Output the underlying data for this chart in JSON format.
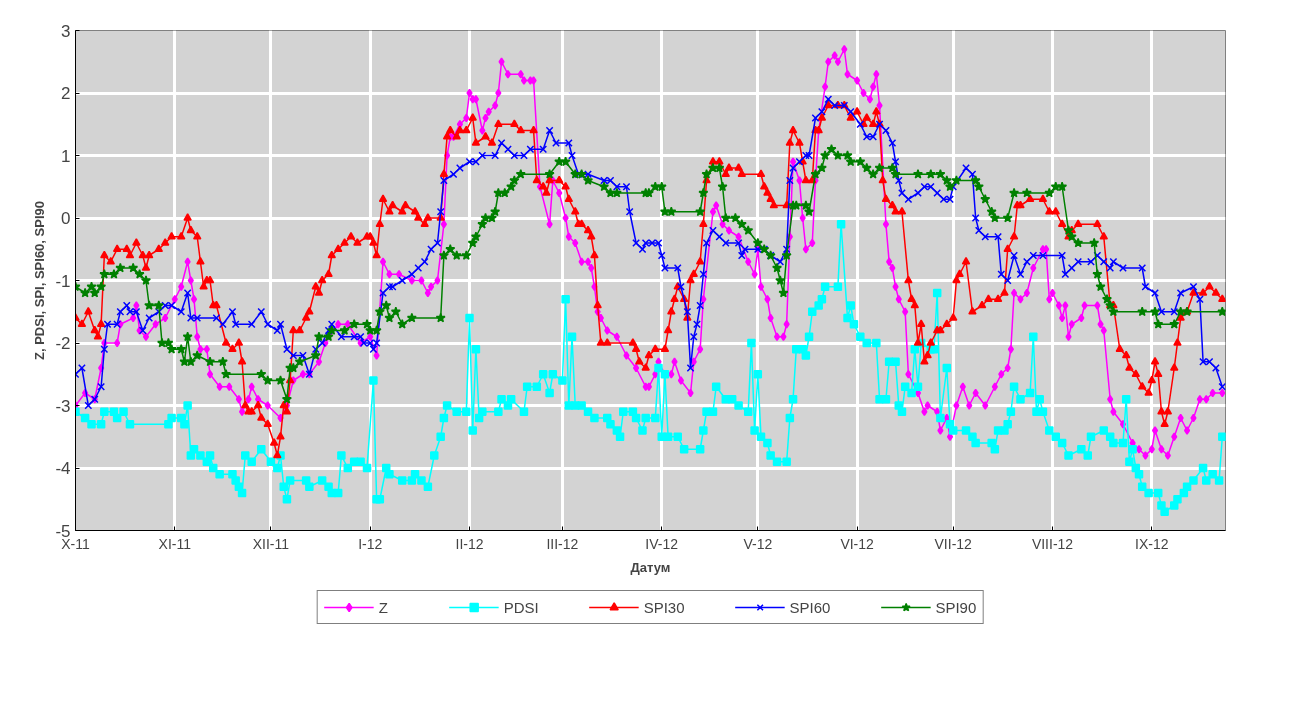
{
  "chart_data": {
    "type": "line",
    "xlabel": "Датум",
    "ylabel": "Z, PDSI, SPI, SPI60, SPI90",
    "xlim": [
      "2011-10-01",
      "2012-09-24"
    ],
    "ylim": [
      -5,
      3
    ],
    "yticks": [
      -5,
      -4,
      -3,
      -2,
      -1,
      0,
      1,
      2,
      3
    ],
    "xticks": [
      {
        "value": "2011-10-01",
        "label": "X-11"
      },
      {
        "value": "2011-11-01",
        "label": "XI-11"
      },
      {
        "value": "2011-12-01",
        "label": "XII-11"
      },
      {
        "value": "2012-01-01",
        "label": "I-12"
      },
      {
        "value": "2012-02-01",
        "label": "II-12"
      },
      {
        "value": "2012-03-01",
        "label": "III-12"
      },
      {
        "value": "2012-04-01",
        "label": "IV-12"
      },
      {
        "value": "2012-05-01",
        "label": "V-12"
      },
      {
        "value": "2012-06-01",
        "label": "VI-12"
      },
      {
        "value": "2012-07-01",
        "label": "VII-12"
      },
      {
        "value": "2012-08-01",
        "label": "VIII-12"
      },
      {
        "value": "2012-09-01",
        "label": "IX-12"
      }
    ],
    "grid": true,
    "legend": "bottom",
    "line_style": "solid",
    "series": [
      {
        "name": "Z",
        "color": "#ff00ff",
        "marker": "diamond",
        "x": [
          "2011-10-01",
          "2011-10-04",
          "2011-10-07",
          "2011-10-09",
          "2011-10-10",
          "2011-10-14",
          "2011-10-15",
          "2011-10-19",
          "2011-10-20",
          "2011-10-21",
          "2011-10-23",
          "2011-10-26",
          "2011-10-29",
          "2011-11-01",
          "2011-11-03",
          "2011-11-05",
          "2011-11-06",
          "2011-11-07",
          "2011-11-08",
          "2011-11-09",
          "2011-11-11",
          "2011-11-12",
          "2011-11-15",
          "2011-11-18",
          "2011-11-21",
          "2011-11-22",
          "2011-11-24",
          "2011-11-25",
          "2011-11-27",
          "2011-11-30",
          "2011-12-04",
          "2011-12-06",
          "2011-12-08",
          "2011-12-11",
          "2011-12-13",
          "2011-12-16",
          "2011-12-18",
          "2011-12-22",
          "2011-12-25",
          "2011-12-29",
          "2012-01-01",
          "2012-01-03",
          "2012-01-05",
          "2012-01-07",
          "2012-01-10",
          "2012-01-14",
          "2012-01-17",
          "2012-01-19",
          "2012-01-20",
          "2012-01-22",
          "2012-01-24",
          "2012-01-25",
          "2012-01-26",
          "2012-01-27",
          "2012-01-29",
          "2012-01-31",
          "2012-02-01",
          "2012-02-02",
          "2012-02-03",
          "2012-02-05",
          "2012-02-06",
          "2012-02-07",
          "2012-02-09",
          "2012-02-10",
          "2012-02-11",
          "2012-02-13",
          "2012-02-17",
          "2012-02-18",
          "2012-02-20",
          "2012-02-21",
          "2012-02-23",
          "2012-02-26",
          "2012-02-27",
          "2012-02-29",
          "2012-03-02",
          "2012-03-03",
          "2012-03-05",
          "2012-03-07",
          "2012-03-09",
          "2012-03-10",
          "2012-03-11",
          "2012-03-12",
          "2012-03-13",
          "2012-03-15",
          "2012-03-18",
          "2012-03-21",
          "2012-03-24",
          "2012-03-27",
          "2012-03-28",
          "2012-03-30",
          "2012-03-31",
          "2012-04-02",
          "2012-04-04",
          "2012-04-05",
          "2012-04-07",
          "2012-04-10",
          "2012-04-11",
          "2012-04-13",
          "2012-04-14",
          "2012-04-17",
          "2012-04-18",
          "2012-04-20",
          "2012-04-22",
          "2012-04-25",
          "2012-04-28",
          "2012-04-30",
          "2012-05-01",
          "2012-05-02",
          "2012-05-04",
          "2012-05-05",
          "2012-05-07",
          "2012-05-09",
          "2012-05-10",
          "2012-05-11",
          "2012-05-12",
          "2012-05-14",
          "2012-05-15",
          "2012-05-16",
          "2012-05-18",
          "2012-05-19",
          "2012-05-20",
          "2012-05-22",
          "2012-05-23",
          "2012-05-25",
          "2012-05-26",
          "2012-05-28",
          "2012-05-29",
          "2012-06-01",
          "2012-06-03",
          "2012-06-05",
          "2012-06-06",
          "2012-06-07",
          "2012-06-08",
          "2012-06-10",
          "2012-06-11",
          "2012-06-12",
          "2012-06-13",
          "2012-06-14",
          "2012-06-16",
          "2012-06-17",
          "2012-06-20",
          "2012-06-22",
          "2012-06-23",
          "2012-06-26",
          "2012-06-27",
          "2012-06-29",
          "2012-06-30",
          "2012-07-02",
          "2012-07-04",
          "2012-07-06",
          "2012-07-08",
          "2012-07-11",
          "2012-07-14",
          "2012-07-16",
          "2012-07-18",
          "2012-07-19",
          "2012-07-20",
          "2012-07-22",
          "2012-07-24",
          "2012-07-26",
          "2012-07-29",
          "2012-07-30",
          "2012-07-31",
          "2012-08-01",
          "2012-08-03",
          "2012-08-04",
          "2012-08-05",
          "2012-08-06",
          "2012-08-07",
          "2012-08-10",
          "2012-08-11",
          "2012-08-15",
          "2012-08-16",
          "2012-08-17",
          "2012-08-19",
          "2012-08-20",
          "2012-08-23",
          "2012-08-26",
          "2012-08-28",
          "2012-08-30",
          "2012-09-01",
          "2012-09-02",
          "2012-09-04",
          "2012-09-06",
          "2012-09-08",
          "2012-09-10",
          "2012-09-12",
          "2012-09-14",
          "2012-09-16",
          "2012-09-18",
          "2012-09-20",
          "2012-09-23"
        ],
        "values": [
          -3.0,
          -2.8,
          -2.9,
          -2.4,
          -2.0,
          -2.0,
          -1.7,
          -1.6,
          -1.4,
          -1.8,
          -1.9,
          -1.7,
          -1.6,
          -1.3,
          -1.1,
          -0.7,
          -1.0,
          -1.3,
          -1.9,
          -2.1,
          -2.1,
          -2.5,
          -2.7,
          -2.7,
          -2.9,
          -3.1,
          -2.9,
          -2.7,
          -2.9,
          -3.0,
          -3.2,
          -3.0,
          -2.6,
          -2.5,
          -2.5,
          -2.3,
          -2.0,
          -1.7,
          -1.7,
          -2.0,
          -1.9,
          -2.2,
          -0.7,
          -0.9,
          -0.9,
          -1.0,
          -1.0,
          -1.2,
          -1.1,
          -1.0,
          -0.1,
          1.0,
          1.3,
          1.3,
          1.5,
          1.6,
          2.0,
          1.9,
          1.9,
          1.4,
          1.6,
          1.7,
          1.8,
          2.0,
          2.5,
          2.3,
          2.3,
          2.2,
          2.2,
          2.2,
          0.5,
          -0.1,
          0.6,
          0.4,
          0.0,
          -0.3,
          -0.4,
          -0.7,
          -0.7,
          -0.8,
          -1.1,
          -1.5,
          -1.6,
          -1.8,
          -1.9,
          -2.2,
          -2.4,
          -2.7,
          -2.7,
          -2.5,
          -2.3,
          -2.5,
          -2.5,
          -2.3,
          -2.6,
          -2.8,
          -2.3,
          -2.1,
          -1.3,
          0.1,
          0.2,
          -0.1,
          -0.2,
          -0.3,
          -0.7,
          -0.9,
          -0.5,
          -1.1,
          -1.3,
          -1.6,
          -1.9,
          -1.9,
          -1.7,
          -0.3,
          0.9,
          0.6,
          0.0,
          -0.5,
          -0.4,
          0.6,
          1.4,
          2.1,
          2.5,
          2.6,
          2.5,
          2.7,
          2.3,
          2.2,
          2.0,
          1.9,
          2.1,
          2.3,
          1.8,
          -0.1,
          -0.7,
          -0.8,
          -1.1,
          -1.3,
          -1.5,
          -2.5,
          -2.8,
          -3.1,
          -3.0,
          -3.1,
          -3.4,
          -3.2,
          -3.5,
          -3.0,
          -2.7,
          -3.0,
          -2.8,
          -3.0,
          -2.7,
          -2.5,
          -2.4,
          -2.1,
          -1.2,
          -1.3,
          -1.2,
          -0.8,
          -0.5,
          -0.5,
          -1.3,
          -1.2,
          -1.4,
          -1.6,
          -1.4,
          -1.9,
          -1.7,
          -1.6,
          -1.4,
          -1.4,
          -1.7,
          -1.8,
          -2.9,
          -3.1,
          -3.3,
          -3.6,
          -3.7,
          -3.8,
          -3.7,
          -3.4,
          -3.7,
          -3.8,
          -3.5,
          -3.2,
          -3.4,
          -3.2,
          -2.9,
          -2.9,
          -2.8,
          -2.8
        ]
      },
      {
        "name": "PDSI",
        "color": "#00ffff",
        "marker": "square",
        "x": [
          "2011-10-01",
          "2011-10-04",
          "2011-10-06",
          "2011-10-09",
          "2011-10-10",
          "2011-10-13",
          "2011-10-14",
          "2011-10-16",
          "2011-10-18",
          "2011-10-30",
          "2011-10-31",
          "2011-11-03",
          "2011-11-04",
          "2011-11-05",
          "2011-11-06",
          "2011-11-07",
          "2011-11-09",
          "2011-11-11",
          "2011-11-12",
          "2011-11-13",
          "2011-11-15",
          "2011-11-19",
          "2011-11-20",
          "2011-11-21",
          "2011-11-22",
          "2011-11-23",
          "2011-11-25",
          "2011-11-28",
          "2011-12-01",
          "2011-12-03",
          "2011-12-04",
          "2011-12-05",
          "2011-12-06",
          "2011-12-07",
          "2011-12-12",
          "2011-12-13",
          "2011-12-17",
          "2011-12-19",
          "2011-12-20",
          "2011-12-22",
          "2011-12-23",
          "2011-12-25",
          "2011-12-27",
          "2011-12-29",
          "2011-12-31",
          "2012-01-02",
          "2012-01-03",
          "2012-01-04",
          "2012-01-06",
          "2012-01-07",
          "2012-01-11",
          "2012-01-14",
          "2012-01-15",
          "2012-01-17",
          "2012-01-19",
          "2012-01-21",
          "2012-01-23",
          "2012-01-24",
          "2012-01-25",
          "2012-01-28",
          "2012-01-31",
          "2012-02-01",
          "2012-02-02",
          "2012-02-03",
          "2012-02-04",
          "2012-02-05",
          "2012-02-10",
          "2012-02-11",
          "2012-02-13",
          "2012-02-14",
          "2012-02-18",
          "2012-02-19",
          "2012-02-22",
          "2012-02-24",
          "2012-02-26",
          "2012-02-27",
          "2012-03-01",
          "2012-03-02",
          "2012-03-03",
          "2012-03-04",
          "2012-03-05",
          "2012-03-07",
          "2012-03-09",
          "2012-03-11",
          "2012-03-15",
          "2012-03-16",
          "2012-03-18",
          "2012-03-19",
          "2012-03-20",
          "2012-03-23",
          "2012-03-24",
          "2012-03-26",
          "2012-03-27",
          "2012-03-30",
          "2012-03-31",
          "2012-04-01",
          "2012-04-02",
          "2012-04-03",
          "2012-04-06",
          "2012-04-08",
          "2012-04-13",
          "2012-04-14",
          "2012-04-15",
          "2012-04-17",
          "2012-04-18",
          "2012-04-21",
          "2012-04-23",
          "2012-04-25",
          "2012-04-28",
          "2012-04-29",
          "2012-04-30",
          "2012-05-01",
          "2012-05-02",
          "2012-05-04",
          "2012-05-05",
          "2012-05-07",
          "2012-05-10",
          "2012-05-11",
          "2012-05-12",
          "2012-05-13",
          "2012-05-15",
          "2012-05-16",
          "2012-05-17",
          "2012-05-18",
          "2012-05-20",
          "2012-05-21",
          "2012-05-22",
          "2012-05-26",
          "2012-05-27",
          "2012-05-29",
          "2012-05-30",
          "2012-05-31",
          "2012-06-02",
          "2012-06-04",
          "2012-06-07",
          "2012-06-08",
          "2012-06-10",
          "2012-06-11",
          "2012-06-13",
          "2012-06-14",
          "2012-06-15",
          "2012-06-16",
          "2012-06-18",
          "2012-06-19",
          "2012-06-20",
          "2012-06-21",
          "2012-06-24",
          "2012-06-25",
          "2012-06-26",
          "2012-06-27",
          "2012-06-29",
          "2012-06-30",
          "2012-07-01",
          "2012-07-05",
          "2012-07-07",
          "2012-07-08",
          "2012-07-13",
          "2012-07-14",
          "2012-07-15",
          "2012-07-17",
          "2012-07-18",
          "2012-07-19",
          "2012-07-20",
          "2012-07-22",
          "2012-07-25",
          "2012-07-26",
          "2012-07-27",
          "2012-07-28",
          "2012-07-29",
          "2012-07-31",
          "2012-08-02",
          "2012-08-04",
          "2012-08-06",
          "2012-08-10",
          "2012-08-12",
          "2012-08-13",
          "2012-08-17",
          "2012-08-19",
          "2012-08-20",
          "2012-08-23",
          "2012-08-24",
          "2012-08-25",
          "2012-08-26",
          "2012-08-27",
          "2012-08-28",
          "2012-08-29",
          "2012-08-31",
          "2012-09-03",
          "2012-09-04",
          "2012-09-05",
          "2012-09-08",
          "2012-09-09",
          "2012-09-11",
          "2012-09-12",
          "2012-09-14",
          "2012-09-17",
          "2012-09-18",
          "2012-09-20",
          "2012-09-22",
          "2012-09-23"
        ],
        "values": [
          -3.1,
          -3.2,
          -3.3,
          -3.3,
          -3.1,
          -3.1,
          -3.2,
          -3.1,
          -3.3,
          -3.3,
          -3.2,
          -3.2,
          -3.3,
          -3.0,
          -3.8,
          -3.7,
          -3.8,
          -3.9,
          -3.8,
          -4.0,
          -4.1,
          -4.1,
          -4.2,
          -4.3,
          -4.4,
          -3.8,
          -3.9,
          -3.7,
          -3.9,
          -4.0,
          -3.8,
          -4.3,
          -4.5,
          -4.2,
          -4.2,
          -4.3,
          -4.2,
          -4.3,
          -4.4,
          -4.4,
          -3.8,
          -4.0,
          -3.9,
          -3.9,
          -4.0,
          -2.6,
          -4.5,
          -4.5,
          -4.0,
          -4.1,
          -4.2,
          -4.2,
          -4.1,
          -4.2,
          -4.3,
          -3.8,
          -3.5,
          -3.2,
          -3.0,
          -3.1,
          -3.1,
          -1.6,
          -3.4,
          -2.1,
          -3.2,
          -3.1,
          -3.1,
          -2.9,
          -3.0,
          -2.9,
          -3.1,
          -2.7,
          -2.7,
          -2.5,
          -2.8,
          -2.5,
          -2.6,
          -1.3,
          -3.0,
          -1.9,
          -3.0,
          -3.0,
          -3.1,
          -3.2,
          -3.2,
          -3.3,
          -3.4,
          -3.5,
          -3.1,
          -3.1,
          -3.2,
          -3.4,
          -3.2,
          -3.2,
          -2.4,
          -3.5,
          -2.5,
          -3.5,
          -3.5,
          -3.7,
          -3.7,
          -3.4,
          -3.1,
          -3.1,
          -2.7,
          -2.9,
          -2.9,
          -3.0,
          -3.1,
          -2.0,
          -3.4,
          -2.5,
          -3.5,
          -3.6,
          -3.8,
          -3.9,
          -3.9,
          -3.2,
          -2.9,
          -2.1,
          -2.1,
          -2.2,
          -1.9,
          -1.5,
          -1.4,
          -1.3,
          -1.1,
          -1.1,
          -0.1,
          -1.6,
          -1.4,
          -1.7,
          -1.9,
          -2.0,
          -2.0,
          -2.9,
          -2.9,
          -2.3,
          -2.3,
          -3.0,
          -3.1,
          -2.7,
          -2.8,
          -2.1,
          -2.7,
          -2.0,
          -2.1,
          -2.1,
          -1.2,
          -3.2,
          -2.4,
          -3.3,
          -3.4,
          -3.4,
          -3.5,
          -3.6,
          -3.6,
          -3.7,
          -3.4,
          -3.4,
          -3.3,
          -3.1,
          -2.7,
          -2.9,
          -2.8,
          -1.9,
          -3.1,
          -2.9,
          -3.1,
          -3.4,
          -3.5,
          -3.6,
          -3.8,
          -3.7,
          -3.8,
          -3.5,
          -3.4,
          -3.5,
          -3.6,
          -3.6,
          -2.9,
          -3.9,
          -3.7,
          -4.0,
          -4.1,
          -4.3,
          -4.4,
          -4.4,
          -4.6,
          -4.7,
          -4.6,
          -4.5,
          -4.4,
          -4.3,
          -4.2,
          -4.0,
          -4.2,
          -4.1,
          -4.2,
          -3.5
        ]
      },
      {
        "name": "SPI30",
        "color": "#ff0000",
        "marker": "triangle",
        "x": [
          "2011-10-01",
          "2011-10-03",
          "2011-10-05",
          "2011-10-07",
          "2011-10-08",
          "2011-10-09",
          "2011-10-10",
          "2011-10-12",
          "2011-10-14",
          "2011-10-17",
          "2011-10-18",
          "2011-10-20",
          "2011-10-22",
          "2011-10-23",
          "2011-10-24",
          "2011-10-27",
          "2011-10-29",
          "2011-10-31",
          "2011-11-03",
          "2011-11-05",
          "2011-11-06",
          "2011-11-08",
          "2011-11-09",
          "2011-11-10",
          "2011-11-11",
          "2011-11-12",
          "2011-11-13",
          "2011-11-14",
          "2011-11-17",
          "2011-11-19",
          "2011-11-21",
          "2011-11-22",
          "2011-11-23",
          "2011-11-24",
          "2011-11-25",
          "2011-11-27",
          "2011-11-28",
          "2011-11-30",
          "2011-12-02",
          "2011-12-03",
          "2011-12-04",
          "2011-12-05",
          "2011-12-06",
          "2011-12-07",
          "2011-12-08",
          "2011-12-10",
          "2011-12-12",
          "2011-12-13",
          "2011-12-15",
          "2011-12-16",
          "2011-12-17",
          "2011-12-19",
          "2011-12-20",
          "2011-12-22",
          "2011-12-24",
          "2011-12-26",
          "2011-12-28",
          "2011-12-31",
          "2012-01-01",
          "2012-01-02",
          "2012-01-03",
          "2012-01-04",
          "2012-01-05",
          "2012-01-07",
          "2012-01-08",
          "2012-01-11",
          "2012-01-12",
          "2012-01-15",
          "2012-01-16",
          "2012-01-18",
          "2012-01-19",
          "2012-01-23",
          "2012-01-24",
          "2012-01-25",
          "2012-01-26",
          "2012-01-28",
          "2012-01-29",
          "2012-01-31",
          "2012-02-02",
          "2012-02-03",
          "2012-02-06",
          "2012-02-08",
          "2012-02-10",
          "2012-02-15",
          "2012-02-17",
          "2012-02-21",
          "2012-02-22",
          "2012-02-24",
          "2012-02-25",
          "2012-02-26",
          "2012-02-29",
          "2012-03-02",
          "2012-03-03",
          "2012-03-05",
          "2012-03-06",
          "2012-03-07",
          "2012-03-09",
          "2012-03-10",
          "2012-03-11",
          "2012-03-12",
          "2012-03-13",
          "2012-03-15",
          "2012-03-23",
          "2012-03-24",
          "2012-03-25",
          "2012-03-27",
          "2012-03-28",
          "2012-03-30",
          "2012-04-02",
          "2012-04-03",
          "2012-04-04",
          "2012-04-05",
          "2012-04-06",
          "2012-04-08",
          "2012-04-09",
          "2012-04-10",
          "2012-04-11",
          "2012-04-13",
          "2012-04-14",
          "2012-04-15",
          "2012-04-17",
          "2012-04-19",
          "2012-04-21",
          "2012-04-22",
          "2012-04-25",
          "2012-04-26",
          "2012-05-02",
          "2012-05-03",
          "2012-05-04",
          "2012-05-05",
          "2012-05-06",
          "2012-05-10",
          "2012-05-11",
          "2012-05-12",
          "2012-05-14",
          "2012-05-15",
          "2012-05-16",
          "2012-05-18",
          "2012-05-19",
          "2012-05-20",
          "2012-05-21",
          "2012-05-23",
          "2012-05-26",
          "2012-05-28",
          "2012-05-30",
          "2012-06-01",
          "2012-06-03",
          "2012-06-04",
          "2012-06-06",
          "2012-06-07",
          "2012-06-08",
          "2012-06-09",
          "2012-06-10",
          "2012-06-12",
          "2012-06-13",
          "2012-06-15",
          "2012-06-17",
          "2012-06-18",
          "2012-06-19",
          "2012-06-20",
          "2012-06-21",
          "2012-06-22",
          "2012-06-23",
          "2012-06-24",
          "2012-06-26",
          "2012-06-27",
          "2012-06-29",
          "2012-07-01",
          "2012-07-02",
          "2012-07-03",
          "2012-07-05",
          "2012-07-07",
          "2012-07-10",
          "2012-07-12",
          "2012-07-15",
          "2012-07-17",
          "2012-07-18",
          "2012-07-20",
          "2012-07-21",
          "2012-07-22",
          "2012-07-25",
          "2012-07-29",
          "2012-07-31",
          "2012-08-02",
          "2012-08-04",
          "2012-08-06",
          "2012-08-07",
          "2012-08-09",
          "2012-08-15",
          "2012-08-17",
          "2012-08-19",
          "2012-08-20",
          "2012-08-22",
          "2012-08-24",
          "2012-08-25",
          "2012-08-27",
          "2012-08-29",
          "2012-08-31",
          "2012-09-01",
          "2012-09-02",
          "2012-09-03",
          "2012-09-04",
          "2012-09-05",
          "2012-09-06",
          "2012-09-08",
          "2012-09-09",
          "2012-09-10",
          "2012-09-12",
          "2012-09-14",
          "2012-09-17",
          "2012-09-19",
          "2012-09-21",
          "2012-09-23"
        ],
        "values": [
          -1.6,
          -1.7,
          -1.5,
          -1.8,
          -1.9,
          -1.7,
          -0.6,
          -0.7,
          -0.5,
          -0.5,
          -0.6,
          -0.4,
          -0.6,
          -0.8,
          -0.6,
          -0.5,
          -0.4,
          -0.3,
          -0.3,
          0.0,
          -0.2,
          -0.3,
          -0.7,
          -1.1,
          -1.0,
          -1.0,
          -1.4,
          -1.4,
          -2.0,
          -2.1,
          -2.0,
          -2.3,
          -3.0,
          -3.1,
          -3.1,
          -3.0,
          -3.2,
          -3.3,
          -3.6,
          -3.8,
          -3.5,
          -3.0,
          -3.1,
          -2.6,
          -1.8,
          -1.8,
          -1.6,
          -1.5,
          -1.1,
          -1.2,
          -1.0,
          -0.9,
          -0.6,
          -0.5,
          -0.4,
          -0.3,
          -0.4,
          -0.3,
          -0.3,
          -0.4,
          -0.6,
          -0.1,
          0.3,
          0.1,
          0.2,
          0.1,
          0.2,
          0.1,
          0.0,
          -0.1,
          0.0,
          0.0,
          0.7,
          1.3,
          1.4,
          1.3,
          1.4,
          1.4,
          1.6,
          1.2,
          1.3,
          1.2,
          1.5,
          1.5,
          1.4,
          1.4,
          0.6,
          0.5,
          0.4,
          0.6,
          0.6,
          0.5,
          0.3,
          0.1,
          -0.1,
          -0.1,
          -0.2,
          -0.3,
          -0.6,
          -1.4,
          -2.0,
          -2.0,
          -2.0,
          -2.1,
          -2.3,
          -2.4,
          -2.2,
          -2.1,
          -2.1,
          -1.8,
          -1.5,
          -1.3,
          -1.1,
          -1.3,
          -1.6,
          -1.0,
          -0.9,
          -0.7,
          -0.1,
          0.6,
          0.9,
          0.9,
          0.7,
          0.8,
          0.8,
          0.7,
          0.7,
          0.5,
          0.4,
          0.3,
          0.2,
          0.2,
          1.2,
          1.4,
          1.2,
          0.9,
          0.6,
          0.6,
          1.4,
          1.4,
          1.6,
          1.8,
          1.8,
          1.8,
          1.6,
          1.7,
          1.5,
          1.6,
          1.5,
          1.7,
          1.5,
          0.6,
          0.3,
          0.2,
          0.1,
          0.1,
          -1.0,
          -1.3,
          -1.4,
          -2.0,
          -1.7,
          -2.3,
          -2.2,
          -2.0,
          -1.8,
          -1.8,
          -1.7,
          -1.6,
          -1.0,
          -0.9,
          -0.7,
          -1.5,
          -1.4,
          -1.3,
          -1.3,
          -1.2,
          -0.5,
          -0.3,
          0.2,
          0.2,
          0.3,
          0.3,
          0.1,
          0.1,
          -0.1,
          -0.3,
          -0.2,
          -0.1,
          -0.1,
          -0.3,
          -1.4,
          -1.4,
          -2.1,
          -2.2,
          -2.4,
          -2.5,
          -2.7,
          -2.8,
          -2.6,
          -2.3,
          -2.5,
          -3.1,
          -3.3,
          -3.1,
          -2.4,
          -2.0,
          -1.6,
          -1.5,
          -1.2,
          -1.2,
          -1.1,
          -1.2,
          -1.3
        ]
      },
      {
        "name": "SPI60",
        "color": "#0000ff",
        "marker": "cross",
        "x": [
          "2011-10-01",
          "2011-10-03",
          "2011-10-05",
          "2011-10-07",
          "2011-10-09",
          "2011-10-10",
          "2011-10-11",
          "2011-10-14",
          "2011-10-15",
          "2011-10-17",
          "2011-10-18",
          "2011-10-20",
          "2011-10-22",
          "2011-10-24",
          "2011-10-27",
          "2011-10-29",
          "2011-10-31",
          "2011-11-03",
          "2011-11-05",
          "2011-11-06",
          "2011-11-08",
          "2011-11-14",
          "2011-11-16",
          "2011-11-19",
          "2011-11-20",
          "2011-11-25",
          "2011-11-28",
          "2011-11-30",
          "2011-12-03",
          "2011-12-04",
          "2011-12-06",
          "2011-12-08",
          "2011-12-11",
          "2011-12-13",
          "2011-12-15",
          "2011-12-17",
          "2011-12-19",
          "2011-12-20",
          "2011-12-23",
          "2011-12-27",
          "2011-12-29",
          "2011-12-30",
          "2012-01-01",
          "2012-01-02",
          "2012-01-03",
          "2012-01-05",
          "2012-01-07",
          "2012-01-08",
          "2012-01-11",
          "2012-01-14",
          "2012-01-16",
          "2012-01-18",
          "2012-01-20",
          "2012-01-22",
          "2012-01-23",
          "2012-01-24",
          "2012-01-27",
          "2012-01-29",
          "2012-02-01",
          "2012-02-03",
          "2012-02-05",
          "2012-02-09",
          "2012-02-11",
          "2012-02-13",
          "2012-02-15",
          "2012-02-18",
          "2012-02-20",
          "2012-02-24",
          "2012-02-26",
          "2012-02-28",
          "2012-03-03",
          "2012-03-04",
          "2012-03-06",
          "2012-03-09",
          "2012-03-14",
          "2012-03-16",
          "2012-03-18",
          "2012-03-21",
          "2012-03-22",
          "2012-03-24",
          "2012-03-26",
          "2012-03-27",
          "2012-03-29",
          "2012-03-31",
          "2012-04-01",
          "2012-04-02",
          "2012-04-06",
          "2012-04-07",
          "2012-04-09",
          "2012-04-10",
          "2012-04-11",
          "2012-04-12",
          "2012-04-13",
          "2012-04-14",
          "2012-04-15",
          "2012-04-17",
          "2012-04-19",
          "2012-04-21",
          "2012-04-25",
          "2012-04-26",
          "2012-04-27",
          "2012-05-01",
          "2012-05-03",
          "2012-05-05",
          "2012-05-08",
          "2012-05-10",
          "2012-05-11",
          "2012-05-12",
          "2012-05-14",
          "2012-05-16",
          "2012-05-17",
          "2012-05-19",
          "2012-05-21",
          "2012-05-23",
          "2012-05-25",
          "2012-05-28",
          "2012-05-30",
          "2012-06-02",
          "2012-06-04",
          "2012-06-06",
          "2012-06-08",
          "2012-06-10",
          "2012-06-12",
          "2012-06-13",
          "2012-06-14",
          "2012-06-15",
          "2012-06-17",
          "2012-06-20",
          "2012-06-22",
          "2012-06-24",
          "2012-06-26",
          "2012-06-28",
          "2012-06-30",
          "2012-07-01",
          "2012-07-05",
          "2012-07-07",
          "2012-07-08",
          "2012-07-09",
          "2012-07-11",
          "2012-07-15",
          "2012-07-16",
          "2012-07-18",
          "2012-07-20",
          "2012-07-22",
          "2012-07-24",
          "2012-07-26",
          "2012-07-29",
          "2012-08-04",
          "2012-08-05",
          "2012-08-07",
          "2012-08-09",
          "2012-08-13",
          "2012-08-15",
          "2012-08-17",
          "2012-08-19",
          "2012-08-20",
          "2012-08-23",
          "2012-08-29",
          "2012-08-30",
          "2012-09-02",
          "2012-09-04",
          "2012-09-08",
          "2012-09-10",
          "2012-09-14",
          "2012-09-16",
          "2012-09-17",
          "2012-09-19",
          "2012-09-21",
          "2012-09-23"
        ],
        "values": [
          -2.5,
          -2.4,
          -3.0,
          -2.9,
          -2.7,
          -2.1,
          -1.7,
          -1.7,
          -1.5,
          -1.4,
          -1.5,
          -1.5,
          -1.8,
          -1.6,
          -1.5,
          -1.4,
          -1.4,
          -1.5,
          -1.2,
          -1.6,
          -1.6,
          -1.6,
          -1.7,
          -1.5,
          -1.7,
          -1.7,
          -1.5,
          -1.7,
          -1.8,
          -1.7,
          -2.1,
          -2.2,
          -2.2,
          -2.5,
          -2.1,
          -2.0,
          -1.8,
          -1.7,
          -1.9,
          -1.9,
          -1.9,
          -2.0,
          -2.0,
          -2.1,
          -2.0,
          -1.2,
          -1.1,
          -1.1,
          -1.0,
          -0.9,
          -0.8,
          -0.7,
          -0.5,
          -0.4,
          0.1,
          0.6,
          0.7,
          0.8,
          0.9,
          0.9,
          1.0,
          1.0,
          1.2,
          1.1,
          1.0,
          1.0,
          1.1,
          1.1,
          1.4,
          1.2,
          1.2,
          1.0,
          0.7,
          0.7,
          0.6,
          0.6,
          0.5,
          0.5,
          0.1,
          -0.4,
          -0.5,
          -0.4,
          -0.4,
          -0.4,
          -0.6,
          -0.8,
          -0.8,
          -1.1,
          -1.5,
          -2.4,
          -1.9,
          -1.7,
          -1.4,
          -0.9,
          -0.4,
          -0.2,
          -0.3,
          -0.4,
          -0.4,
          -0.6,
          -0.5,
          -0.5,
          -0.5,
          -0.6,
          -0.7,
          -0.5,
          0.6,
          0.8,
          0.9,
          1.0,
          1.0,
          1.6,
          1.7,
          1.9,
          1.8,
          1.8,
          1.7,
          1.5,
          1.3,
          1.3,
          1.5,
          1.4,
          1.2,
          0.9,
          0.6,
          0.4,
          0.3,
          0.4,
          0.5,
          0.5,
          0.4,
          0.3,
          0.3,
          0.5,
          0.8,
          0.7,
          0.0,
          -0.2,
          -0.3,
          -0.3,
          -0.9,
          -1.0,
          -0.6,
          -0.9,
          -0.7,
          -0.6,
          -0.6,
          -0.6,
          -0.9,
          -0.8,
          -0.7,
          -0.7,
          -0.6,
          -0.7,
          -0.8,
          -0.7,
          -0.8,
          -0.8,
          -1.1,
          -1.2,
          -1.5,
          -1.5,
          -1.2,
          -1.1,
          -1.3,
          -2.3,
          -2.3,
          -2.4,
          -2.7
        ]
      },
      {
        "name": "SPI90",
        "color": "#008000",
        "marker": "star",
        "x": [
          "2011-10-01",
          "2011-10-04",
          "2011-10-06",
          "2011-10-07",
          "2011-10-09",
          "2011-10-10",
          "2011-10-13",
          "2011-10-15",
          "2011-10-19",
          "2011-10-21",
          "2011-10-23",
          "2011-10-24",
          "2011-10-27",
          "2011-10-28",
          "2011-10-30",
          "2011-10-31",
          "2011-11-03",
          "2011-11-04",
          "2011-11-05",
          "2011-11-06",
          "2011-11-08",
          "2011-11-12",
          "2011-11-16",
          "2011-11-17",
          "2011-11-28",
          "2011-11-30",
          "2011-12-04",
          "2011-12-06",
          "2011-12-07",
          "2011-12-08",
          "2011-12-10",
          "2011-12-15",
          "2011-12-16",
          "2011-12-19",
          "2011-12-20",
          "2011-12-24",
          "2011-12-27",
          "2011-12-31",
          "2012-01-01",
          "2012-01-03",
          "2012-01-04",
          "2012-01-06",
          "2012-01-07",
          "2012-01-09",
          "2012-01-11",
          "2012-01-14",
          "2012-01-23",
          "2012-01-24",
          "2012-01-26",
          "2012-01-28",
          "2012-01-31",
          "2012-02-02",
          "2012-02-03",
          "2012-02-05",
          "2012-02-06",
          "2012-02-08",
          "2012-02-09",
          "2012-02-10",
          "2012-02-12",
          "2012-02-14",
          "2012-02-15",
          "2012-02-17",
          "2012-02-26",
          "2012-02-29",
          "2012-03-02",
          "2012-03-05",
          "2012-03-07",
          "2012-03-09",
          "2012-03-14",
          "2012-03-16",
          "2012-03-18",
          "2012-03-27",
          "2012-03-28",
          "2012-03-30",
          "2012-04-01",
          "2012-04-02",
          "2012-04-04",
          "2012-04-13",
          "2012-04-14",
          "2012-04-15",
          "2012-04-17",
          "2012-04-19",
          "2012-04-20",
          "2012-04-21",
          "2012-04-24",
          "2012-04-26",
          "2012-04-28",
          "2012-05-01",
          "2012-05-03",
          "2012-05-05",
          "2012-05-07",
          "2012-05-08",
          "2012-05-09",
          "2012-05-10",
          "2012-05-12",
          "2012-05-13",
          "2012-05-16",
          "2012-05-17",
          "2012-05-19",
          "2012-05-21",
          "2012-05-22",
          "2012-05-24",
          "2012-05-26",
          "2012-05-29",
          "2012-05-30",
          "2012-06-02",
          "2012-06-04",
          "2012-06-06",
          "2012-06-08",
          "2012-06-12",
          "2012-06-13",
          "2012-06-20",
          "2012-06-24",
          "2012-06-27",
          "2012-06-29",
          "2012-06-30",
          "2012-07-02",
          "2012-07-08",
          "2012-07-09",
          "2012-07-11",
          "2012-07-13",
          "2012-07-14",
          "2012-07-18",
          "2012-07-20",
          "2012-07-24",
          "2012-07-31",
          "2012-08-02",
          "2012-08-04",
          "2012-08-06",
          "2012-08-07",
          "2012-08-09",
          "2012-08-14",
          "2012-08-15",
          "2012-08-16",
          "2012-08-18",
          "2012-08-19",
          "2012-08-20",
          "2012-08-29",
          "2012-09-02",
          "2012-09-03",
          "2012-09-08",
          "2012-09-10",
          "2012-09-12",
          "2012-09-23"
        ],
        "values": [
          -1.1,
          -1.2,
          -1.1,
          -1.2,
          -1.1,
          -0.9,
          -0.9,
          -0.8,
          -0.8,
          -0.9,
          -1.0,
          -1.4,
          -1.4,
          -2.0,
          -2.0,
          -2.1,
          -2.1,
          -2.3,
          -1.9,
          -2.3,
          -2.2,
          -2.3,
          -2.3,
          -2.5,
          -2.5,
          -2.6,
          -2.6,
          -2.9,
          -2.4,
          -2.4,
          -2.3,
          -2.2,
          -1.9,
          -1.9,
          -1.8,
          -1.8,
          -1.7,
          -1.7,
          -1.8,
          -1.8,
          -1.5,
          -1.4,
          -1.6,
          -1.5,
          -1.7,
          -1.6,
          -1.6,
          -0.6,
          -0.5,
          -0.6,
          -0.6,
          -0.4,
          -0.3,
          -0.1,
          0.0,
          0.0,
          0.1,
          0.4,
          0.4,
          0.5,
          0.6,
          0.7,
          0.7,
          0.9,
          0.9,
          0.7,
          0.7,
          0.6,
          0.5,
          0.4,
          0.4,
          0.4,
          0.4,
          0.5,
          0.5,
          0.1,
          0.1,
          0.1,
          0.4,
          0.7,
          0.8,
          0.8,
          0.5,
          0.0,
          0.0,
          -0.1,
          -0.2,
          -0.4,
          -0.5,
          -0.6,
          -0.8,
          -1.0,
          -1.2,
          -0.6,
          0.2,
          0.2,
          0.2,
          0.1,
          0.7,
          0.8,
          1.0,
          1.1,
          1.0,
          1.0,
          0.9,
          0.9,
          0.8,
          0.7,
          0.8,
          0.8,
          0.7,
          0.7,
          0.7,
          0.7,
          0.6,
          0.5,
          0.6,
          0.6,
          0.5,
          0.3,
          0.1,
          0.0,
          0.0,
          0.4,
          0.4,
          0.4,
          0.5,
          0.5,
          -0.2,
          -0.3,
          -0.4,
          -0.4,
          -0.9,
          -1.1,
          -1.3,
          -1.4,
          -1.5,
          -1.5,
          -1.5,
          -1.7,
          -1.7,
          -1.5,
          -1.5,
          -1.5
        ]
      }
    ]
  }
}
